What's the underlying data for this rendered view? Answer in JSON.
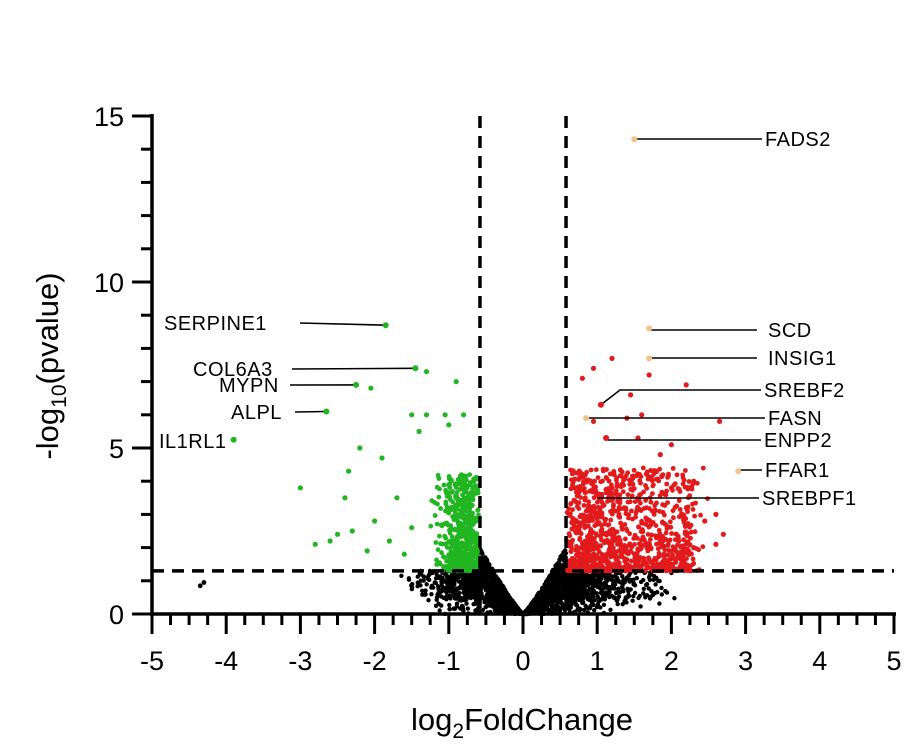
{
  "chart_data": {
    "type": "scatter",
    "title": "",
    "xlabel": {
      "main": "log",
      "sub": "2",
      "rest": "FoldChange"
    },
    "ylabel": {
      "main": "-log",
      "sub": "10",
      "rest": "(pvalue)"
    },
    "xlim": [
      -5,
      5
    ],
    "ylim": [
      0,
      15
    ],
    "xticks": [
      -5,
      -4,
      -3,
      -2,
      -1,
      0,
      1,
      2,
      3,
      4,
      5
    ],
    "yticks": [
      0,
      5,
      10,
      15
    ],
    "xtick_labels": [
      "-5",
      "-4",
      "-3",
      "-2",
      "-1",
      "0",
      "1",
      "2",
      "3",
      "4",
      "5"
    ],
    "ytick_labels": [
      "0",
      "5",
      "10",
      "15"
    ],
    "thresholds": {
      "log2fc": [
        -0.58,
        0.58
      ],
      "neglog10p": 1.3
    },
    "colors": {
      "not_significant": "#000000",
      "down": "#22b522",
      "up": "#e31a1c",
      "highlight": "#f2c28a",
      "axis": "#000000"
    },
    "labeled_genes": [
      {
        "gene": "FADS2",
        "x": 1.5,
        "y": 14.3,
        "group": "highlight"
      },
      {
        "gene": "SCD",
        "x": 1.7,
        "y": 8.6,
        "group": "highlight"
      },
      {
        "gene": "INSIG1",
        "x": 1.7,
        "y": 7.7,
        "group": "highlight"
      },
      {
        "gene": "SREBF2",
        "x": 1.05,
        "y": 6.3,
        "group": "up"
      },
      {
        "gene": "FASN",
        "x": 0.85,
        "y": 5.9,
        "group": "highlight"
      },
      {
        "gene": "ENPP2",
        "x": 1.12,
        "y": 5.3,
        "group": "up"
      },
      {
        "gene": "FFAR1",
        "x": 2.9,
        "y": 4.3,
        "group": "highlight"
      },
      {
        "gene": "SREBPF1",
        "x": 1.0,
        "y": 3.6,
        "group": "up"
      },
      {
        "gene": "SERPINE1",
        "x": -1.85,
        "y": 8.7,
        "group": "down"
      },
      {
        "gene": "COL6A3",
        "x": -1.45,
        "y": 7.4,
        "group": "down"
      },
      {
        "gene": "MYPN",
        "x": -2.25,
        "y": 6.9,
        "group": "down"
      },
      {
        "gene": "ALPL",
        "x": -2.65,
        "y": 6.1,
        "group": "down"
      },
      {
        "gene": "IL1RL1",
        "x": -3.9,
        "y": 5.25,
        "group": "down"
      }
    ],
    "extra_points": {
      "down": [
        [
          -1.3,
          7.3
        ],
        [
          -2.05,
          6.8
        ],
        [
          -0.9,
          7.0
        ],
        [
          -1.5,
          6.0
        ],
        [
          -1.3,
          6.0
        ],
        [
          -1.05,
          6.0
        ],
        [
          -0.8,
          6.0
        ],
        [
          -1.4,
          5.5
        ],
        [
          -1.0,
          5.7
        ],
        [
          -2.2,
          5.0
        ],
        [
          -1.9,
          4.7
        ],
        [
          -2.35,
          4.3
        ],
        [
          -3.0,
          3.8
        ],
        [
          -2.4,
          3.5
        ],
        [
          -1.7,
          3.5
        ],
        [
          -2.0,
          2.8
        ],
        [
          -1.5,
          2.6
        ],
        [
          -2.3,
          2.5
        ],
        [
          -2.5,
          2.4
        ],
        [
          -2.6,
          2.2
        ],
        [
          -2.8,
          2.1
        ],
        [
          -1.8,
          2.2
        ],
        [
          -1.6,
          1.8
        ],
        [
          -2.1,
          1.9
        ]
      ],
      "up": [
        [
          1.2,
          7.7
        ],
        [
          2.2,
          6.9
        ],
        [
          1.7,
          7.2
        ],
        [
          0.95,
          7.4
        ],
        [
          0.8,
          7.1
        ],
        [
          1.45,
          6.6
        ],
        [
          1.6,
          6.0
        ],
        [
          1.4,
          5.9
        ],
        [
          1.55,
          5.3
        ],
        [
          0.95,
          5.8
        ],
        [
          2.0,
          5.1
        ],
        [
          2.65,
          5.8
        ],
        [
          1.85,
          4.8
        ],
        [
          2.3,
          4.0
        ],
        [
          2.0,
          3.8
        ],
        [
          2.6,
          3.0
        ],
        [
          2.45,
          2.8
        ],
        [
          2.1,
          2.2
        ],
        [
          2.3,
          2.0
        ],
        [
          2.6,
          2.1
        ],
        [
          2.7,
          2.4
        ],
        [
          2.15,
          1.6
        ],
        [
          1.9,
          1.8
        ],
        [
          2.2,
          1.4
        ]
      ],
      "not_significant": [
        [
          -4.3,
          0.95
        ],
        [
          -4.35,
          0.85
        ]
      ]
    },
    "legend": "none",
    "grid": false
  }
}
